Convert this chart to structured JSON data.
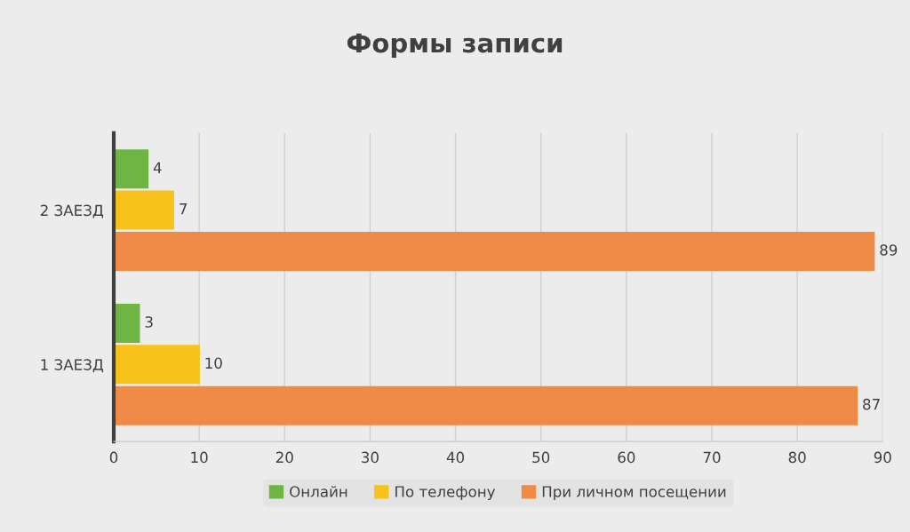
{
  "chart_data": {
    "type": "bar",
    "orientation": "horizontal",
    "title": "Формы записи",
    "categories": [
      "2 ЗАЕЗД",
      "1 ЗАЕЗД"
    ],
    "series": [
      {
        "name": "Онлайн",
        "color": "#6fb544",
        "values": [
          4,
          3
        ]
      },
      {
        "name": "По телефону",
        "color": "#f7c21b",
        "values": [
          7,
          10
        ]
      },
      {
        "name": "При личном посещении",
        "color": "#ef8b47",
        "values": [
          89,
          87
        ]
      }
    ],
    "xlim": [
      0,
      90
    ],
    "xticks": [
      0,
      10,
      20,
      30,
      40,
      50,
      60,
      70,
      80,
      90
    ],
    "grid": "x",
    "legend": "bottom",
    "data_labels": true
  }
}
